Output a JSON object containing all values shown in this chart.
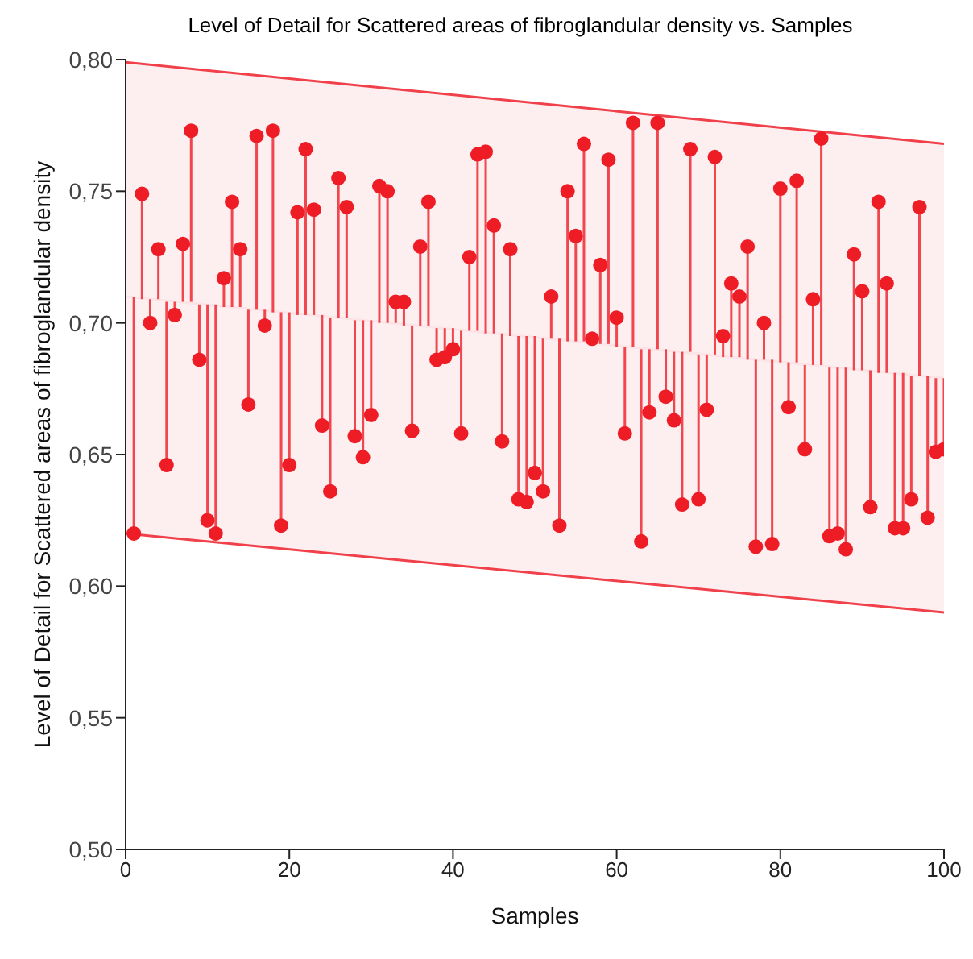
{
  "chart_data": {
    "type": "scatter",
    "title": "Level of Detail for Scattered areas of fibroglandular density vs. Samples",
    "xlabel": "Samples",
    "ylabel": "Level of Detail for Scattered areas of fibroglandular density",
    "xlim": [
      0,
      100
    ],
    "xticks": [
      0,
      20,
      40,
      60,
      80,
      100
    ],
    "ylim": [
      0.5,
      0.8
    ],
    "yticks": [
      {
        "value": 0.5,
        "label": "0,50"
      },
      {
        "value": 0.55,
        "label": "0,55"
      },
      {
        "value": 0.6,
        "label": "0,60"
      },
      {
        "value": 0.65,
        "label": "0,65"
      },
      {
        "value": 0.7,
        "label": "0,70"
      },
      {
        "value": 0.75,
        "label": "0,75"
      },
      {
        "value": 0.8,
        "label": "0,80"
      }
    ],
    "marker": "circle",
    "series": [
      {
        "type": "line",
        "x": [
          0,
          100
        ],
        "values": [
          0.71,
          0.679
        ],
        "lower": [
          0.62,
          0.59
        ],
        "upper": [
          0.799,
          0.768
        ],
        "color": "#fbe3e6",
        "marker": "none"
      },
      {
        "type": "line",
        "x": [
          0,
          100
        ],
        "values": [
          0.799,
          0.768
        ],
        "color": "#f0414b",
        "marker": "none"
      },
      {
        "type": "line",
        "x": [
          0,
          100
        ],
        "values": [
          0.62,
          0.59
        ],
        "color": "#f0414b",
        "marker": "none"
      },
      {
        "color": "#ee1c25",
        "x": [
          1,
          2,
          3,
          4,
          5,
          6,
          7,
          8,
          9,
          10,
          11,
          12,
          13,
          14,
          15,
          16,
          17,
          18,
          19,
          20,
          21,
          22,
          23,
          24,
          25,
          26,
          27,
          28,
          29,
          30,
          31,
          32,
          33,
          34,
          35,
          36,
          37,
          38,
          39,
          40,
          41,
          42,
          43,
          44,
          45,
          46,
          47,
          48,
          49,
          50,
          51,
          52,
          53,
          54,
          55,
          56,
          57,
          58,
          59,
          60,
          61,
          62,
          63,
          64,
          65,
          66,
          67,
          68,
          69,
          70,
          71,
          72,
          73,
          74,
          75,
          76,
          77,
          78,
          79,
          80,
          81,
          82,
          83,
          84,
          85,
          86,
          87,
          88,
          89,
          90,
          91,
          92,
          93,
          94,
          95,
          96,
          97,
          98,
          99,
          100
        ],
        "values": [
          0.62,
          0.749,
          0.7,
          0.728,
          0.646,
          0.703,
          0.73,
          0.773,
          0.686,
          0.625,
          0.62,
          0.717,
          0.746,
          0.728,
          0.669,
          0.771,
          0.699,
          0.773,
          0.623,
          0.646,
          0.742,
          0.766,
          0.743,
          0.661,
          0.636,
          0.755,
          0.744,
          0.657,
          0.649,
          0.665,
          0.752,
          0.75,
          0.708,
          0.708,
          0.659,
          0.729,
          0.746,
          0.686,
          0.687,
          0.69,
          0.658,
          0.725,
          0.764,
          0.765,
          0.737,
          0.655,
          0.728,
          0.633,
          0.632,
          0.643,
          0.636,
          0.71,
          0.623,
          0.75,
          0.733,
          0.768,
          0.694,
          0.722,
          0.762,
          0.702,
          0.658,
          0.776,
          0.617,
          0.666,
          0.776,
          0.672,
          0.663,
          0.631,
          0.766,
          0.633,
          0.667,
          0.763,
          0.695,
          0.715,
          0.71,
          0.729,
          0.615,
          0.7,
          0.616,
          0.751,
          0.668,
          0.754,
          0.652,
          0.709,
          0.77,
          0.619,
          0.62,
          0.614,
          0.726,
          0.712,
          0.63,
          0.746,
          0.715,
          0.622,
          0.622,
          0.633,
          0.744,
          0.626,
          0.651,
          0.652
        ],
        "errors": [
          [
            0.62,
            0.71
          ],
          [
            0.709,
            0.749
          ],
          [
            0.7,
            0.709
          ],
          [
            0.709,
            0.728
          ],
          [
            0.646,
            0.708
          ],
          [
            0.703,
            0.708
          ],
          [
            0.708,
            0.73
          ],
          [
            0.708,
            0.773
          ],
          [
            0.686,
            0.707
          ],
          [
            0.625,
            0.707
          ],
          [
            0.62,
            0.707
          ],
          [
            0.706,
            0.717
          ],
          [
            0.706,
            0.746
          ],
          [
            0.706,
            0.728
          ],
          [
            0.669,
            0.705
          ],
          [
            0.705,
            0.771
          ],
          [
            0.699,
            0.705
          ],
          [
            0.704,
            0.773
          ],
          [
            0.623,
            0.704
          ],
          [
            0.646,
            0.704
          ],
          [
            0.703,
            0.742
          ],
          [
            0.703,
            0.766
          ],
          [
            0.703,
            0.743
          ],
          [
            0.661,
            0.703
          ],
          [
            0.636,
            0.702
          ],
          [
            0.702,
            0.755
          ],
          [
            0.702,
            0.744
          ],
          [
            0.657,
            0.701
          ],
          [
            0.649,
            0.701
          ],
          [
            0.665,
            0.701
          ],
          [
            0.7,
            0.752
          ],
          [
            0.7,
            0.75
          ],
          [
            0.7,
            0.708
          ],
          [
            0.699,
            0.708
          ],
          [
            0.659,
            0.699
          ],
          [
            0.699,
            0.729
          ],
          [
            0.699,
            0.746
          ],
          [
            0.686,
            0.698
          ],
          [
            0.687,
            0.698
          ],
          [
            0.69,
            0.698
          ],
          [
            0.658,
            0.697
          ],
          [
            0.697,
            0.725
          ],
          [
            0.697,
            0.764
          ],
          [
            0.696,
            0.765
          ],
          [
            0.696,
            0.737
          ],
          [
            0.655,
            0.696
          ],
          [
            0.695,
            0.728
          ],
          [
            0.633,
            0.695
          ],
          [
            0.632,
            0.695
          ],
          [
            0.643,
            0.695
          ],
          [
            0.636,
            0.694
          ],
          [
            0.694,
            0.71
          ],
          [
            0.623,
            0.694
          ],
          [
            0.693,
            0.75
          ],
          [
            0.693,
            0.733
          ],
          [
            0.693,
            0.768
          ],
          [
            0.692,
            0.694
          ],
          [
            0.692,
            0.722
          ],
          [
            0.692,
            0.762
          ],
          [
            0.691,
            0.702
          ],
          [
            0.658,
            0.691
          ],
          [
            0.691,
            0.776
          ],
          [
            0.617,
            0.69
          ],
          [
            0.666,
            0.69
          ],
          [
            0.69,
            0.776
          ],
          [
            0.672,
            0.69
          ],
          [
            0.663,
            0.689
          ],
          [
            0.631,
            0.689
          ],
          [
            0.689,
            0.766
          ],
          [
            0.633,
            0.688
          ],
          [
            0.667,
            0.688
          ],
          [
            0.688,
            0.763
          ],
          [
            0.687,
            0.695
          ],
          [
            0.687,
            0.715
          ],
          [
            0.687,
            0.71
          ],
          [
            0.686,
            0.729
          ],
          [
            0.615,
            0.686
          ],
          [
            0.686,
            0.7
          ],
          [
            0.616,
            0.686
          ],
          [
            0.685,
            0.751
          ],
          [
            0.668,
            0.685
          ],
          [
            0.685,
            0.754
          ],
          [
            0.652,
            0.684
          ],
          [
            0.684,
            0.709
          ],
          [
            0.684,
            0.77
          ],
          [
            0.619,
            0.683
          ],
          [
            0.62,
            0.683
          ],
          [
            0.614,
            0.683
          ],
          [
            0.682,
            0.726
          ],
          [
            0.682,
            0.712
          ],
          [
            0.63,
            0.682
          ],
          [
            0.681,
            0.746
          ],
          [
            0.681,
            0.715
          ],
          [
            0.622,
            0.681
          ],
          [
            0.622,
            0.681
          ],
          [
            0.633,
            0.68
          ],
          [
            0.68,
            0.744
          ],
          [
            0.626,
            0.68
          ],
          [
            0.651,
            0.679
          ],
          [
            0.652,
            0.679
          ]
        ]
      }
    ]
  }
}
